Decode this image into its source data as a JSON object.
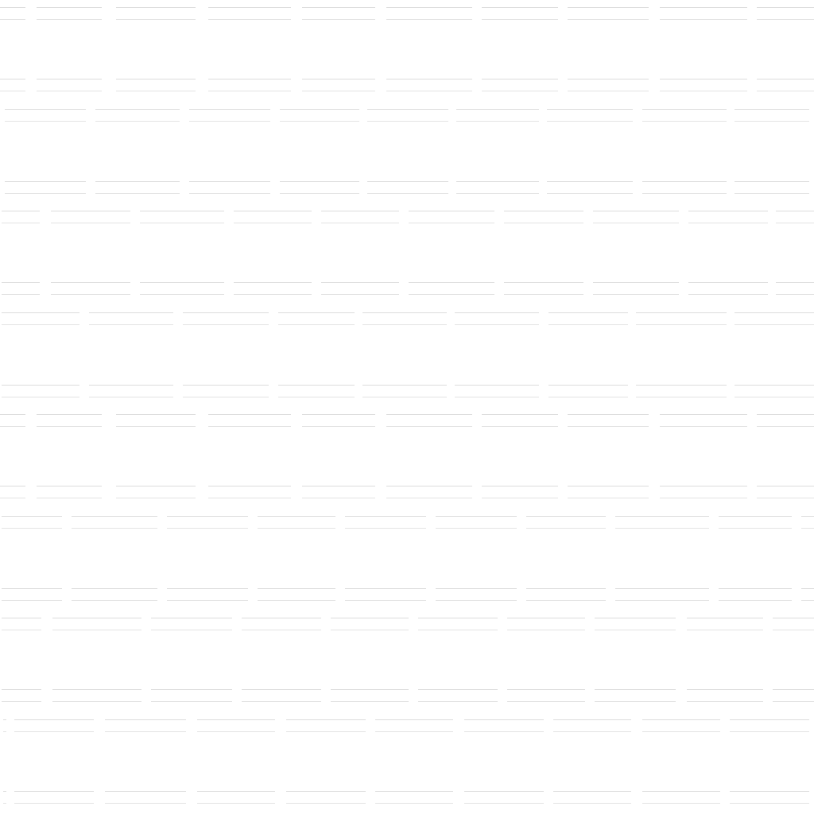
{
  "page": {
    "background_color": "#ffffff",
    "line_color_top": "#dcdcdc",
    "line_color_bottom": "#e3e3e3"
  }
}
